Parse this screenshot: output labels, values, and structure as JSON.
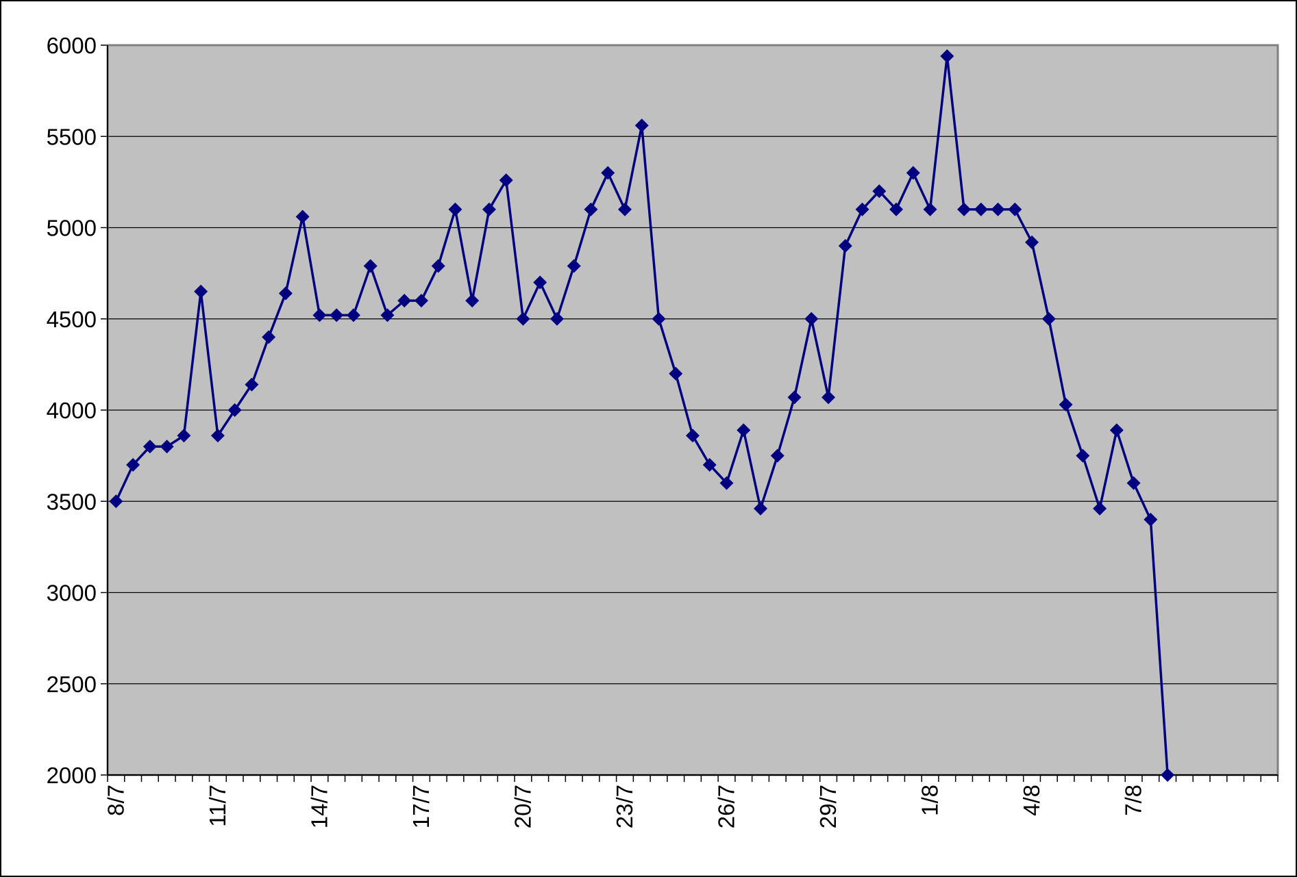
{
  "chart_data": {
    "type": "line",
    "categories": [
      "8/7",
      null,
      null,
      null,
      null,
      null,
      "11/7",
      null,
      null,
      null,
      null,
      null,
      "14/7",
      null,
      null,
      null,
      null,
      null,
      "17/7",
      null,
      null,
      null,
      null,
      null,
      "20/7",
      null,
      null,
      null,
      null,
      null,
      "23/7",
      null,
      null,
      null,
      null,
      null,
      "26/7",
      null,
      null,
      null,
      null,
      null,
      "29/7",
      null,
      null,
      null,
      null,
      null,
      "1/8",
      null,
      null,
      null,
      null,
      null,
      "4/8",
      null,
      null,
      null,
      null,
      null,
      "7/8",
      null,
      null,
      null,
      null,
      null,
      null,
      null,
      null
    ],
    "series": [
      {
        "color": "#000080",
        "values": [
          3500,
          3700,
          3800,
          3800,
          3860,
          4650,
          3860,
          4000,
          4140,
          4400,
          4640,
          5060,
          4520,
          4520,
          4520,
          4790,
          4520,
          4600,
          4600,
          4790,
          5100,
          4600,
          5100,
          5260,
          4500,
          4700,
          4500,
          4790,
          5100,
          5300,
          5100,
          5560,
          4500,
          4200,
          3860,
          3700,
          3600,
          3890,
          3460,
          3750,
          4070,
          4500,
          4070,
          4900,
          5100,
          5200,
          5100,
          5300,
          5100,
          5940,
          5100,
          5100,
          5100,
          5100,
          4920,
          4500,
          4030,
          3750,
          3460,
          3890,
          3600,
          3400,
          2000,
          null,
          null,
          null,
          null,
          null,
          null
        ]
      }
    ],
    "ylim": [
      2000,
      6000
    ],
    "yticks": [
      2000,
      2500,
      3000,
      3500,
      4000,
      4500,
      5000,
      5500,
      6000
    ],
    "grid": true,
    "plot_background": "#c0c0c0"
  }
}
